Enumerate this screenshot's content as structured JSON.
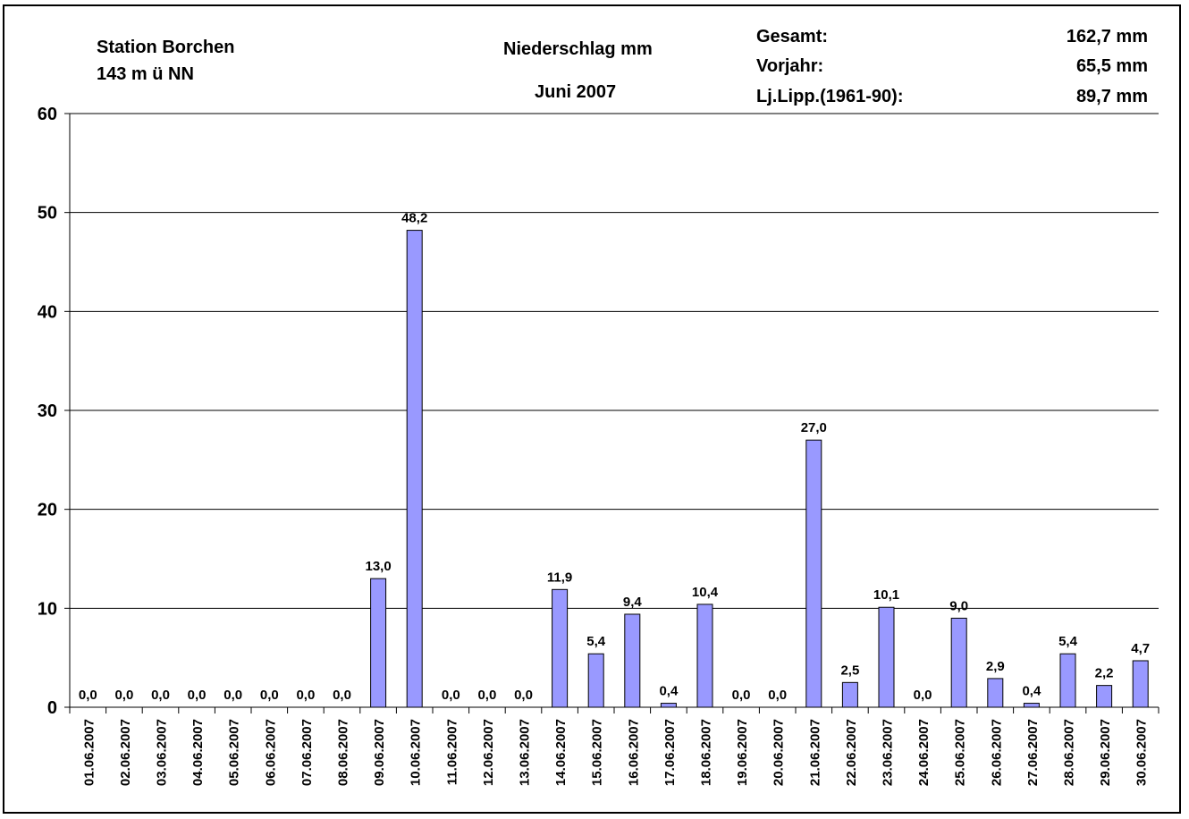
{
  "header": {
    "station": "Station Borchen",
    "elevation": "143 m ü NN",
    "title": "Niederschlag mm",
    "period": "Juni 2007",
    "summary": [
      {
        "label": "Gesamt:",
        "value": "162,7 mm"
      },
      {
        "label": "Vorjahr:",
        "value": "65,5 mm"
      },
      {
        "label": "Lj.Lipp.(1961-90):",
        "value": "89,7 mm"
      }
    ]
  },
  "colors": {
    "bar_fill": "#9999ff",
    "bar_stroke": "#000000",
    "grid": "#000000",
    "text": "#000000"
  },
  "chart_data": {
    "type": "bar",
    "title": "Niederschlag mm",
    "xlabel": "",
    "ylabel": "",
    "ylim": [
      0,
      60
    ],
    "yticks": [
      0,
      10,
      20,
      30,
      40,
      50,
      60
    ],
    "grid": true,
    "legend": "none",
    "categories": [
      "01.06.2007",
      "02.06.2007",
      "03.06.2007",
      "04.06.2007",
      "05.06.2007",
      "06.06.2007",
      "07.06.2007",
      "08.06.2007",
      "09.06.2007",
      "10.06.2007",
      "11.06.2007",
      "12.06.2007",
      "13.06.2007",
      "14.06.2007",
      "15.06.2007",
      "16.06.2007",
      "17.06.2007",
      "18.06.2007",
      "19.06.2007",
      "20.06.2007",
      "21.06.2007",
      "22.06.2007",
      "23.06.2007",
      "24.06.2007",
      "25.06.2007",
      "26.06.2007",
      "27.06.2007",
      "28.06.2007",
      "29.06.2007",
      "30.06.2007"
    ],
    "values": [
      0.0,
      0.0,
      0.0,
      0.0,
      0.0,
      0.0,
      0.0,
      0.0,
      13.0,
      48.2,
      0.0,
      0.0,
      0.0,
      11.9,
      5.4,
      9.4,
      0.4,
      10.4,
      0.0,
      0.0,
      27.0,
      2.5,
      10.1,
      0.0,
      9.0,
      2.9,
      0.4,
      5.4,
      2.2,
      4.7
    ],
    "value_labels": [
      "0,0",
      "0,0",
      "0,0",
      "0,0",
      "0,0",
      "0,0",
      "0,0",
      "0,0",
      "13,0",
      "48,2",
      "0,0",
      "0,0",
      "0,0",
      "11,9",
      "5,4",
      "9,4",
      "0,4",
      "10,4",
      "0,0",
      "0,0",
      "27,0",
      "2,5",
      "10,1",
      "0,0",
      "9,0",
      "2,9",
      "0,4",
      "5,4",
      "2,2",
      "4,7"
    ]
  }
}
